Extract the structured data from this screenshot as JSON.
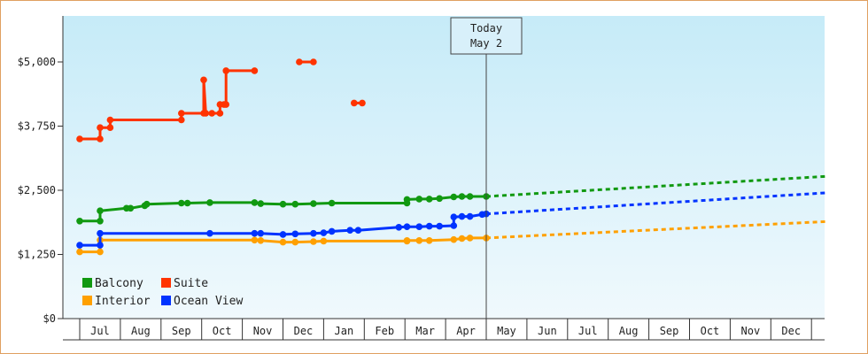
{
  "chart_data": {
    "type": "line",
    "today": {
      "title": "Today",
      "date_label": "May 2",
      "x": 10.0
    },
    "y_ticks": [
      {
        "label": "$0",
        "value": 0
      },
      {
        "label": "$1,250",
        "value": 1250
      },
      {
        "label": "$2,500",
        "value": 2500
      },
      {
        "label": "$3,750",
        "value": 3750
      },
      {
        "label": "$5,000",
        "value": 5000
      }
    ],
    "ylim": [
      0,
      5000
    ],
    "x_months": [
      "Jul",
      "Aug",
      "Sep",
      "Oct",
      "Nov",
      "Dec",
      "Jan",
      "Feb",
      "Mar",
      "Apr",
      "May",
      "Jun",
      "Jul",
      "Aug",
      "Sep",
      "Oct",
      "Nov",
      "Dec"
    ],
    "xlim": [
      0,
      18.35
    ],
    "grid": "vertical-month-boundaries",
    "legend_position": "bottom-left",
    "colors": {
      "background_top": "#c6ebf8",
      "background_bottom": "#f0f9fd",
      "axis": "#333333",
      "frame": "#e0a060",
      "balcony": "#119911",
      "suite": "#ff3300",
      "interior": "#ffa000",
      "ocean_view": "#0033ff"
    },
    "series": [
      {
        "name": "Balcony",
        "key": "balcony",
        "points": [
          [
            0,
            1900
          ],
          [
            0.5,
            1900
          ],
          [
            0.5,
            2100
          ],
          [
            1.15,
            2150
          ],
          [
            1.25,
            2150
          ],
          [
            1.6,
            2200
          ],
          [
            1.65,
            2230
          ],
          [
            2.5,
            2250
          ],
          [
            2.65,
            2250
          ],
          [
            3.2,
            2260
          ],
          [
            4.3,
            2260
          ],
          [
            4.45,
            2240
          ],
          [
            5.0,
            2230
          ],
          [
            5.3,
            2230
          ],
          [
            5.75,
            2240
          ],
          [
            6.2,
            2250
          ],
          [
            8.05,
            2250
          ],
          [
            8.05,
            2320
          ],
          [
            8.35,
            2330
          ],
          [
            8.6,
            2330
          ],
          [
            8.85,
            2340
          ],
          [
            9.2,
            2370
          ],
          [
            9.4,
            2380
          ],
          [
            9.6,
            2380
          ],
          [
            10.0,
            2380
          ]
        ],
        "breaks_after": [
          1
        ],
        "forecast": [
          [
            10.0,
            2380
          ],
          [
            18.35,
            2770
          ]
        ]
      },
      {
        "name": "Suite",
        "key": "suite",
        "segments": [
          [
            [
              0,
              3500
            ],
            [
              0.5,
              3500
            ],
            [
              0.5,
              3720
            ],
            [
              0.75,
              3720
            ],
            [
              0.75,
              3870
            ],
            [
              2.5,
              3870
            ],
            [
              2.5,
              4000
            ],
            [
              3.05,
              4000
            ],
            [
              3.05,
              4650
            ],
            [
              3.1,
              4000
            ],
            [
              3.25,
              4000
            ],
            [
              3.45,
              4000
            ],
            [
              3.45,
              4170
            ],
            [
              3.55,
              4170
            ],
            [
              3.6,
              4170
            ],
            [
              3.6,
              4830
            ],
            [
              4.3,
              4830
            ]
          ],
          [
            [
              5.4,
              5000
            ],
            [
              5.75,
              5000
            ]
          ],
          [
            [
              6.75,
              4200
            ],
            [
              6.95,
              4200
            ]
          ]
        ]
      },
      {
        "name": "Interior",
        "key": "interior",
        "points": [
          [
            0,
            1300
          ],
          [
            0.5,
            1300
          ],
          [
            0.5,
            1530
          ],
          [
            4.3,
            1530
          ],
          [
            4.45,
            1520
          ],
          [
            5.0,
            1490
          ],
          [
            5.3,
            1490
          ],
          [
            5.75,
            1500
          ],
          [
            6.0,
            1510
          ],
          [
            8.05,
            1510
          ],
          [
            8.05,
            1520
          ],
          [
            8.35,
            1520
          ],
          [
            8.6,
            1520
          ],
          [
            9.2,
            1540
          ],
          [
            9.4,
            1560
          ],
          [
            9.6,
            1570
          ],
          [
            10.0,
            1570
          ]
        ],
        "breaks_after": [
          1
        ],
        "forecast": [
          [
            10.0,
            1570
          ],
          [
            18.35,
            1890
          ]
        ]
      },
      {
        "name": "Ocean View",
        "key": "ocean_view",
        "points": [
          [
            0,
            1430
          ],
          [
            0.5,
            1430
          ],
          [
            0.5,
            1660
          ],
          [
            3.2,
            1660
          ],
          [
            4.3,
            1660
          ],
          [
            4.45,
            1660
          ],
          [
            5.0,
            1640
          ],
          [
            5.3,
            1650
          ],
          [
            5.75,
            1660
          ],
          [
            6.0,
            1670
          ],
          [
            6.2,
            1700
          ],
          [
            6.65,
            1720
          ],
          [
            6.85,
            1720
          ],
          [
            7.85,
            1780
          ],
          [
            8.05,
            1790
          ],
          [
            8.35,
            1790
          ],
          [
            8.6,
            1800
          ],
          [
            8.85,
            1800
          ],
          [
            9.2,
            1810
          ],
          [
            9.2,
            1980
          ],
          [
            9.4,
            1990
          ],
          [
            9.6,
            1990
          ],
          [
            9.9,
            2030
          ],
          [
            10.0,
            2040
          ]
        ],
        "forecast": [
          [
            10.0,
            2040
          ],
          [
            18.35,
            2450
          ]
        ]
      }
    ],
    "legend": [
      {
        "name": "Balcony",
        "key": "balcony"
      },
      {
        "name": "Suite",
        "key": "suite"
      },
      {
        "name": "Interior",
        "key": "interior"
      },
      {
        "name": "Ocean View",
        "key": "ocean_view"
      }
    ]
  }
}
